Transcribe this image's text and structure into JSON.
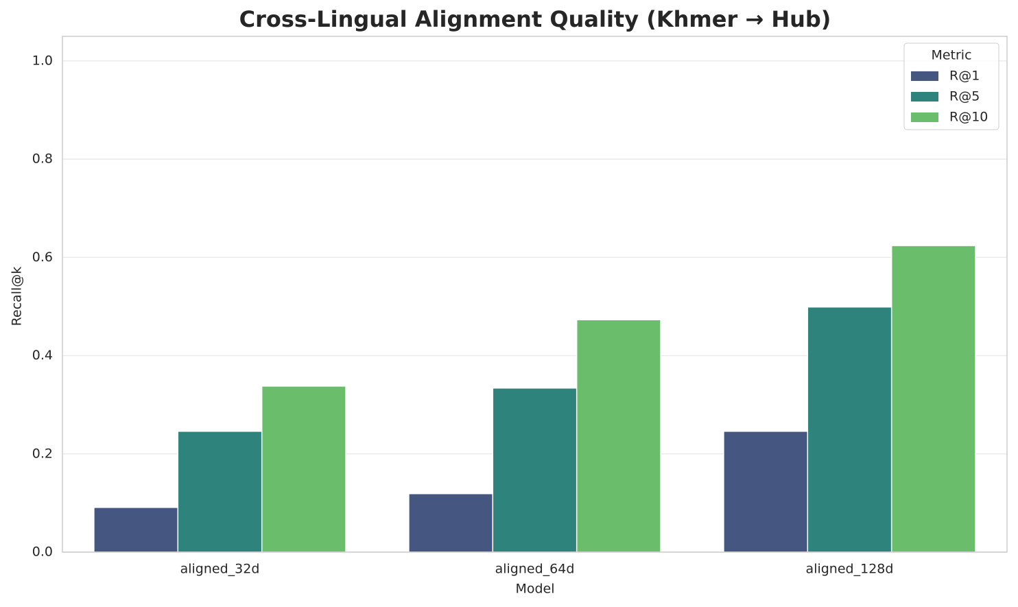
{
  "chart_data": {
    "type": "bar",
    "title": "Cross-Lingual Alignment Quality (Khmer → Hub)",
    "x_label": "Model",
    "y_label": "Recall@k",
    "categories": [
      "aligned_32d",
      "aligned_64d",
      "aligned_128d"
    ],
    "series": [
      {
        "name": "R@1",
        "color": "#455681",
        "values": [
          0.091,
          0.119,
          0.246
        ]
      },
      {
        "name": "R@5",
        "color": "#2e837c",
        "values": [
          0.246,
          0.334,
          0.499
        ]
      },
      {
        "name": "R@10",
        "color": "#6abd6b",
        "values": [
          0.338,
          0.473,
          0.624
        ]
      }
    ],
    "legend_title": "Metric",
    "legend_position": "upper right",
    "ylim": [
      0,
      1.05
    ],
    "yticks": [
      {
        "value": 0,
        "label": "0.0"
      },
      0.2,
      0.4,
      0.6,
      0.8,
      {
        "value": 1,
        "label": "1.0"
      }
    ],
    "grid": true
  }
}
